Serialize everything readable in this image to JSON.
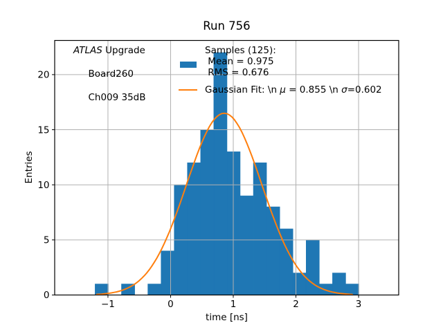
{
  "figure": {
    "title": "Run 756",
    "xlabel": "time [ns]",
    "ylabel": "Entries"
  },
  "annotation": {
    "line1_italic": "ATLAS",
    "line1_rest": " Upgrade",
    "line2": " Board260",
    "line3": " Ch009 35dB"
  },
  "legend": {
    "samples_line1": "Samples (125):",
    "samples_line2": " Mean = 0.975",
    "samples_line3": " RMS = 0.676",
    "gauss_part1": "Gaussian Fit: \\n ",
    "gauss_mu": "μ",
    "gauss_part2": " = 0.855 \\n ",
    "gauss_sigma": "σ",
    "gauss_part3": "=0.602"
  },
  "chart_data": {
    "type": "bar",
    "subtype": "histogram-with-gaussian-fit",
    "title": "Run 756",
    "xlabel": "time [ns]",
    "ylabel": "Entries",
    "n_samples": 125,
    "sample_mean": 0.975,
    "sample_rms": 0.676,
    "gaussian_fit": {
      "mu": 0.855,
      "sigma": 0.602,
      "amplitude": 16.5
    },
    "bin_edges": [
      -1.205,
      -0.994,
      -0.784,
      -0.573,
      -0.363,
      -0.152,
      0.058,
      0.268,
      0.479,
      0.689,
      0.9,
      1.11,
      1.321,
      1.531,
      1.742,
      1.952,
      2.163,
      2.373,
      2.584,
      2.794,
      3.005
    ],
    "counts": [
      1,
      0,
      1,
      0,
      1,
      4,
      10,
      12,
      15,
      22,
      13,
      9,
      12,
      8,
      6,
      2,
      5,
      1,
      2,
      1
    ],
    "xlim": [
      -1.85,
      3.64
    ],
    "ylim": [
      0,
      23.1
    ],
    "xticks": [
      -1,
      0,
      1,
      2,
      3
    ],
    "xtick_labels": [
      "−1",
      "0",
      "1",
      "2",
      "3"
    ],
    "yticks": [
      0,
      5,
      10,
      15,
      20
    ],
    "ytick_labels": [
      "0",
      "5",
      "10",
      "15",
      "20"
    ],
    "grid": true,
    "legend_position": "upper center",
    "curve_x_range": [
      -1.18,
      2.9
    ],
    "colors": {
      "bars": "#1f77b4",
      "fit_line": "#ff7f0e",
      "grid": "#b0b0b0",
      "spine": "#000000"
    }
  }
}
